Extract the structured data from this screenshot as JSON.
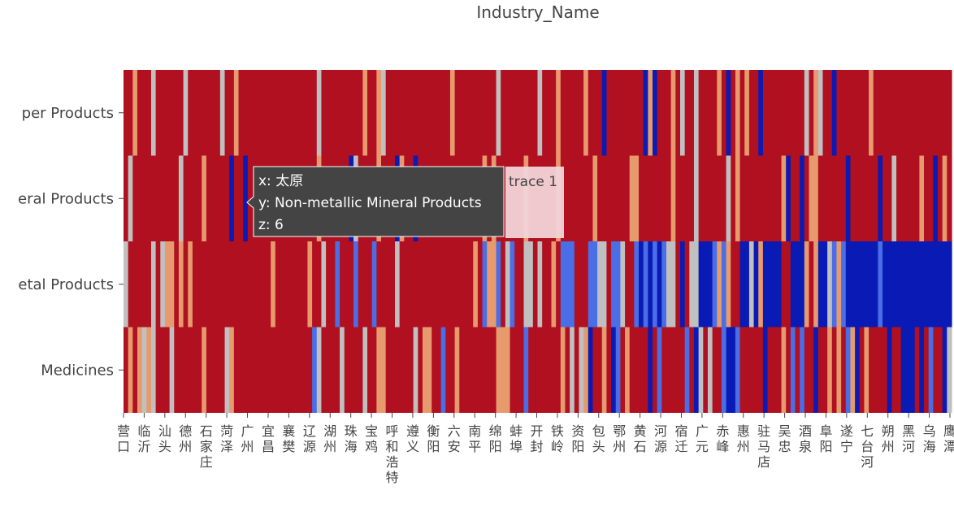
{
  "chart_data": {
    "type": "heatmap",
    "title": "Industry_Name",
    "y_categories": [
      "Paper Products",
      "Non-metallic Mineral Products",
      "Metal Products",
      "Medicines"
    ],
    "y_tick_labels": [
      "per Products",
      "eral Products",
      "etal Products",
      "Medicines"
    ],
    "x_tick_labels": [
      "营口",
      "临沂",
      "汕头",
      "德州",
      "石家庄",
      "菏泽",
      "广州",
      "宜昌",
      "襄樊",
      "辽源",
      "湖州",
      "珠海",
      "宝鸡",
      "呼和浩特",
      "遵义",
      "衡阳",
      "六安",
      "南平",
      "绵阳",
      "蚌埠",
      "开封",
      "铁岭",
      "资阳",
      "包头",
      "鄂州",
      "黄石",
      "河源",
      "宿迁",
      "广元",
      "赤峰",
      "惠州",
      "驻马店",
      "吴忠",
      "酒泉",
      "阜阳",
      "遂宁",
      "七台河",
      "朔州",
      "黑河",
      "乌海",
      "鹰潭"
    ],
    "n_columns": 180,
    "colorscale": [
      "#0a1ab4",
      "#4a6ee6",
      "#c0c0c0",
      "#e69a6e",
      "#b01020"
    ],
    "tooltip": {
      "x_line": "x: 太原",
      "y_line": "y: Non-metallic Mineral Products",
      "z_line": "z: 6",
      "trace": "trace 1"
    }
  }
}
